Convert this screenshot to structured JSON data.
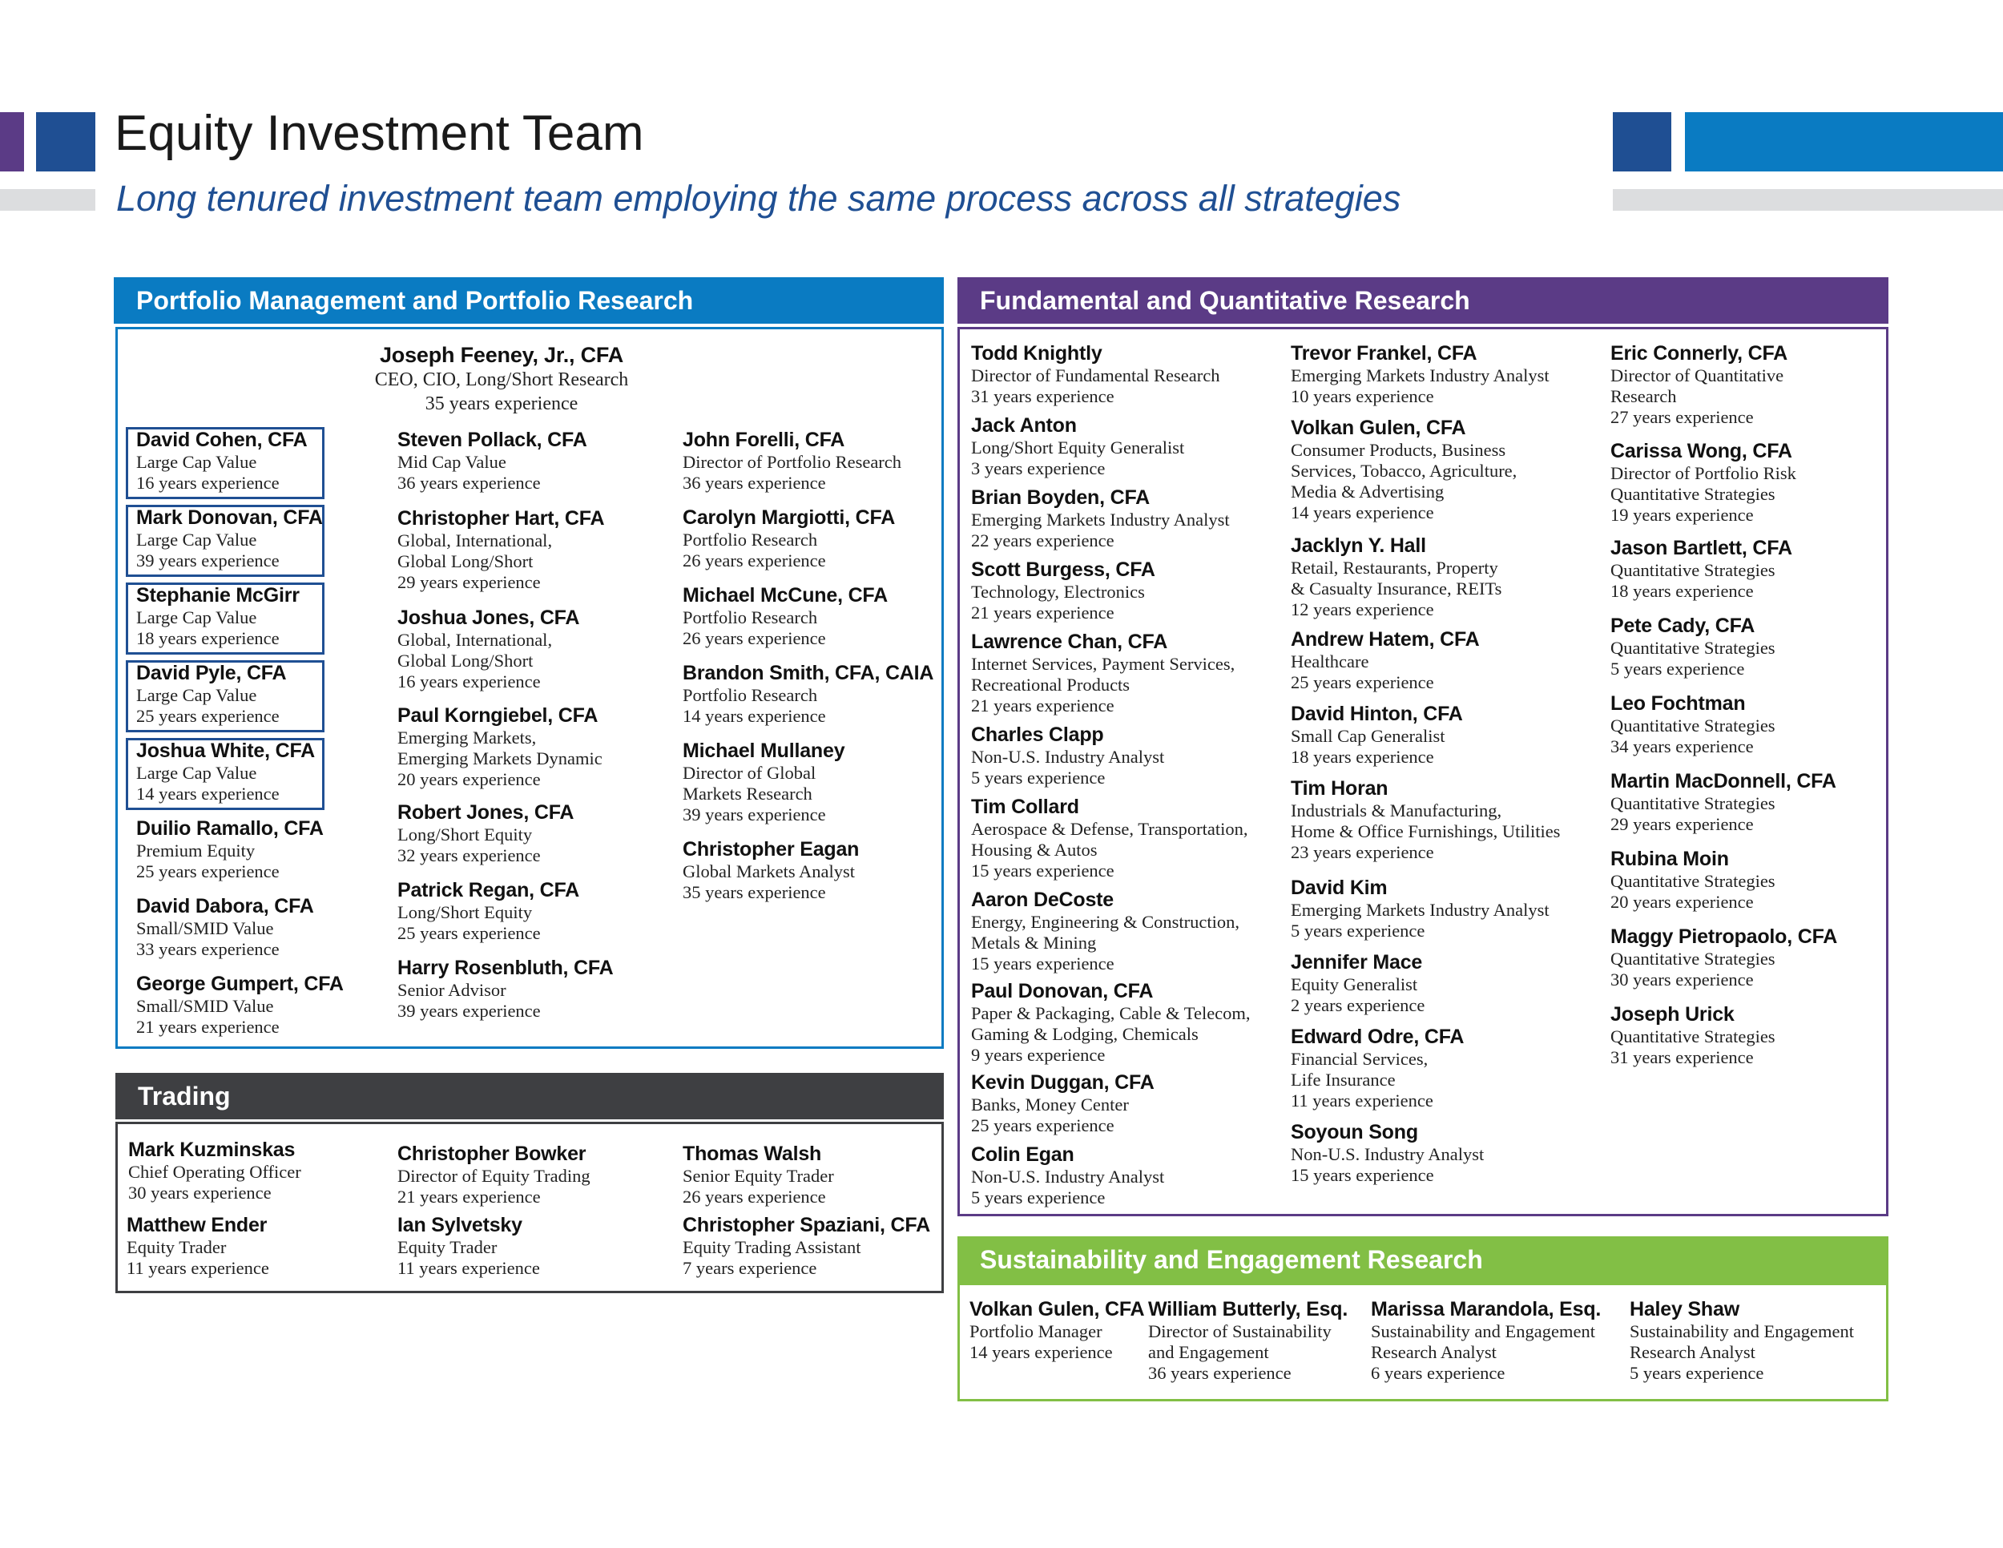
{
  "page": {
    "title": "Equity Investment Team",
    "subtitle": "Long tenured investment team employing the same process across all strategies"
  },
  "colors": {
    "purple": "#5b3b86",
    "navy": "#1f4f93",
    "blue": "#0a7bc2",
    "gray": "#dcdddf",
    "dark": "#3e3f42",
    "green": "#82bf45"
  },
  "pm": {
    "header": "Portfolio Management and Portfolio Research",
    "lead": {
      "name": "Joseph Feeney, Jr., CFA",
      "lines": [
        "CEO, CIO, Long/Short Research",
        "35 years experience"
      ]
    },
    "col1": [
      {
        "name": "David Cohen, CFA",
        "lines": [
          "Large Cap Value",
          "16 years experience"
        ]
      },
      {
        "name": "Mark Donovan, CFA",
        "lines": [
          "Large Cap Value",
          "39 years experience"
        ]
      },
      {
        "name": "Stephanie McGirr",
        "lines": [
          "Large Cap Value",
          "18 years experience"
        ]
      },
      {
        "name": "David Pyle, CFA",
        "lines": [
          "Large Cap Value",
          "25 years experience"
        ]
      },
      {
        "name": "Joshua White, CFA",
        "lines": [
          "Large Cap Value",
          "14 years experience"
        ]
      },
      {
        "name": "Duilio Ramallo, CFA",
        "lines": [
          "Premium Equity",
          "25 years experience"
        ]
      },
      {
        "name": "David Dabora, CFA",
        "lines": [
          "Small/SMID Value",
          "33 years experience"
        ]
      },
      {
        "name": "George Gumpert, CFA",
        "lines": [
          "Small/SMID Value",
          "21 years experience"
        ]
      }
    ],
    "col2": [
      {
        "name": "Steven Pollack, CFA",
        "lines": [
          "Mid Cap Value",
          "36 years experience"
        ]
      },
      {
        "name": "Christopher Hart, CFA",
        "lines": [
          "Global, International,",
          "Global Long/Short",
          "29 years experience"
        ]
      },
      {
        "name": "Joshua Jones, CFA",
        "lines": [
          "Global, International,",
          "Global Long/Short",
          "16 years experience"
        ]
      },
      {
        "name": "Paul Korngiebel, CFA",
        "lines": [
          "Emerging Markets,",
          "Emerging Markets Dynamic",
          "20 years experience"
        ]
      },
      {
        "name": "Robert Jones, CFA",
        "lines": [
          "Long/Short Equity",
          "32 years experience"
        ]
      },
      {
        "name": "Patrick Regan, CFA",
        "lines": [
          "Long/Short Equity",
          "25 years experience"
        ]
      },
      {
        "name": "Harry Rosenbluth, CFA",
        "lines": [
          "Senior Advisor",
          "39 years experience"
        ]
      }
    ],
    "col3": [
      {
        "name": "John Forelli, CFA",
        "lines": [
          "Director of Portfolio Research",
          "36 years experience"
        ]
      },
      {
        "name": "Carolyn Margiotti, CFA",
        "lines": [
          "Portfolio Research",
          "26 years experience"
        ]
      },
      {
        "name": "Michael McCune, CFA",
        "lines": [
          "Portfolio Research",
          "26 years experience"
        ]
      },
      {
        "name": "Brandon Smith, CFA, CAIA",
        "lines": [
          "Portfolio Research",
          "14 years experience"
        ]
      },
      {
        "name": "Michael Mullaney",
        "lines": [
          "Director of Global",
          " Markets Research",
          "39 years experience"
        ]
      },
      {
        "name": "Christopher Eagan",
        "lines": [
          "Global Markets Analyst",
          "35 years experience"
        ]
      }
    ]
  },
  "trading": {
    "header": "Trading",
    "people": [
      {
        "name": "Mark Kuzminskas",
        "lines": [
          "Chief Operating Officer",
          "30 years experience"
        ]
      },
      {
        "name": "Christopher Bowker",
        "lines": [
          "Director of Equity Trading",
          "21 years experience"
        ]
      },
      {
        "name": "Thomas Walsh",
        "lines": [
          "Senior Equity Trader",
          "26 years experience"
        ]
      },
      {
        "name": "Matthew Ender",
        "lines": [
          "Equity Trader",
          "11 years experience"
        ]
      },
      {
        "name": "Ian Sylvetsky",
        "lines": [
          "Equity Trader",
          "11 years experience"
        ]
      },
      {
        "name": "Christopher Spaziani, CFA",
        "lines": [
          "Equity Trading Assistant",
          "7 years experience"
        ]
      }
    ]
  },
  "fq": {
    "header": "Fundamental and Quantitative Research",
    "col1": [
      {
        "name": "Todd Knightly",
        "lines": [
          "Director of Fundamental Research",
          "31 years experience"
        ]
      },
      {
        "name": "Jack Anton",
        "lines": [
          "Long/Short Equity Generalist",
          "3 years experience"
        ]
      },
      {
        "name": "Brian Boyden, CFA",
        "lines": [
          "Emerging Markets Industry Analyst",
          "22 years experience"
        ]
      },
      {
        "name": "Scott Burgess, CFA",
        "lines": [
          "Technology, Electronics",
          "21 years experience"
        ]
      },
      {
        "name": "Lawrence Chan, CFA",
        "lines": [
          "Internet Services, Payment Services,",
          "Recreational Products",
          "21 years experience"
        ]
      },
      {
        "name": "Charles Clapp",
        "lines": [
          "Non-U.S. Industry Analyst",
          "5 years experience"
        ]
      },
      {
        "name": "Tim Collard",
        "lines": [
          "Aerospace & Defense, Transportation,",
          "Housing & Autos",
          "15 years experience"
        ]
      },
      {
        "name": "Aaron DeCoste",
        "lines": [
          "Energy, Engineering & Construction,",
          "Metals & Mining",
          "15 years experience"
        ]
      },
      {
        "name": "Paul Donovan, CFA",
        "lines": [
          "Paper & Packaging, Cable & Telecom,",
          "Gaming & Lodging, Chemicals",
          "9 years experience"
        ]
      },
      {
        "name": "Kevin Duggan, CFA",
        "lines": [
          "Banks, Money Center",
          "25 years experience"
        ]
      },
      {
        "name": "Colin Egan",
        "lines": [
          "Non-U.S. Industry Analyst",
          "5 years experience"
        ]
      }
    ],
    "col2": [
      {
        "name": "Trevor Frankel, CFA",
        "lines": [
          "Emerging Markets Industry Analyst",
          "10 years experience"
        ]
      },
      {
        "name": "Volkan Gulen, CFA",
        "lines": [
          "Consumer Products, Business",
          "Services, Tobacco, Agriculture,",
          "Media & Advertising",
          "14 years experience"
        ]
      },
      {
        "name": "Jacklyn Y. Hall",
        "lines": [
          "Retail, Restaurants, Property",
          "& Casualty Insurance, REITs",
          "12 years experience"
        ]
      },
      {
        "name": "Andrew Hatem, CFA",
        "lines": [
          "Healthcare",
          "25 years experience"
        ]
      },
      {
        "name": "David Hinton, CFA",
        "lines": [
          "Small Cap Generalist",
          "18 years experience"
        ]
      },
      {
        "name": "Tim Horan",
        "lines": [
          "Industrials & Manufacturing,",
          "Home & Office Furnishings, Utilities",
          "23 years experience"
        ]
      },
      {
        "name": "David Kim",
        "lines": [
          "Emerging Markets Industry Analyst",
          "5 years experience"
        ]
      },
      {
        "name": "Jennifer Mace",
        "lines": [
          "Equity Generalist",
          "2 years experience"
        ]
      },
      {
        "name": "Edward Odre, CFA",
        "lines": [
          "Financial Services,",
          "Life Insurance",
          "11 years experience"
        ]
      },
      {
        "name": "Soyoun Song",
        "lines": [
          "Non-U.S. Industry Analyst",
          "15 years experience"
        ]
      }
    ],
    "col3": [
      {
        "name": "Eric Connerly, CFA",
        "lines": [
          "Director of Quantitative",
          "Research",
          "27 years experience"
        ]
      },
      {
        "name": "Carissa Wong, CFA",
        "lines": [
          "Director of Portfolio Risk",
          "Quantitative Strategies",
          "19 years experience"
        ]
      },
      {
        "name": "Jason Bartlett, CFA",
        "lines": [
          "Quantitative Strategies",
          "18 years experience"
        ]
      },
      {
        "name": "Pete Cady, CFA",
        "lines": [
          "Quantitative Strategies",
          "5 years experience"
        ]
      },
      {
        "name": "Leo Fochtman",
        "lines": [
          "Quantitative Strategies",
          "34 years experience"
        ]
      },
      {
        "name": "Martin MacDonnell, CFA",
        "lines": [
          "Quantitative Strategies",
          "29 years experience"
        ]
      },
      {
        "name": "Rubina Moin",
        "lines": [
          "Quantitative Strategies",
          "20 years experience"
        ]
      },
      {
        "name": "Maggy Pietropaolo, CFA",
        "lines": [
          "Quantitative Strategies",
          "30 years experience"
        ]
      },
      {
        "name": "Joseph Urick",
        "lines": [
          "Quantitative Strategies",
          "31 years experience"
        ]
      }
    ]
  },
  "ser": {
    "header": "Sustainability and Engagement Research",
    "people": [
      {
        "name": "Volkan Gulen, CFA",
        "lines": [
          "Portfolio Manager",
          "14 years experience"
        ]
      },
      {
        "name": "William Butterly, Esq.",
        "lines": [
          "Director of Sustainability",
          " and Engagement",
          "36 years experience"
        ]
      },
      {
        "name": "Marissa Marandola, Esq.",
        "lines": [
          "Sustainability and Engagement",
          "Research Analyst",
          "6 years experience"
        ]
      },
      {
        "name": "Haley Shaw",
        "lines": [
          "Sustainability and Engagement",
          "Research Analyst",
          "5 years experience"
        ]
      }
    ]
  }
}
